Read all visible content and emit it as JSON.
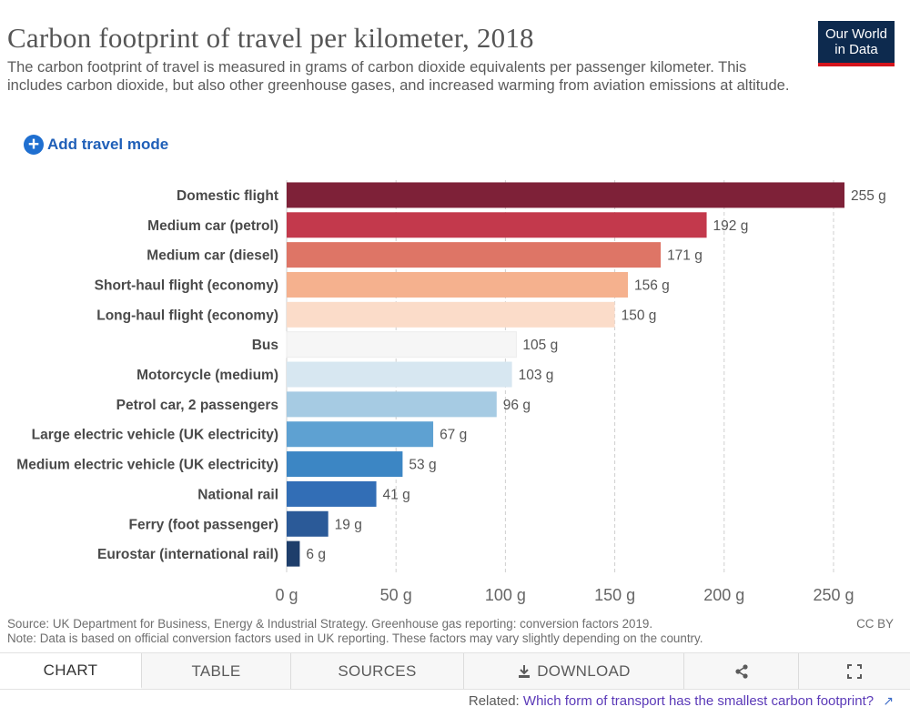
{
  "header": {
    "title": "Carbon footprint of travel per kilometer, 2018",
    "subtitle": "The carbon footprint of travel is measured in grams of carbon dioxide equivalents per passenger kilometer. This includes carbon dioxide, but also other greenhouse gases, and increased warming from aviation emissions at altitude.",
    "logo_line1": "Our World",
    "logo_line2": "in Data",
    "add_mode_label": "Add travel mode"
  },
  "chart_data": {
    "type": "bar",
    "orientation": "horizontal",
    "unit": "g",
    "categories": [
      "Domestic flight",
      "Medium car (petrol)",
      "Medium car (diesel)",
      "Short-haul flight (economy)",
      "Long-haul flight (economy)",
      "Bus",
      "Motorcycle (medium)",
      "Petrol car, 2 passengers",
      "Large electric vehicle (UK electricity)",
      "Medium electric vehicle (UK electricity)",
      "National rail",
      "Ferry (foot passenger)",
      "Eurostar (international rail)"
    ],
    "values": [
      255,
      192,
      171,
      156,
      150,
      105,
      103,
      96,
      67,
      53,
      41,
      19,
      6
    ],
    "value_labels": [
      "255 g",
      "192 g",
      "171 g",
      "156 g",
      "150 g",
      "105 g",
      "103 g",
      "96 g",
      "67 g",
      "53 g",
      "41 g",
      "19 g",
      "6 g"
    ],
    "colors": [
      "#7e2138",
      "#c3394c",
      "#de7566",
      "#f5b18e",
      "#fbdcc9",
      "#f6f6f6",
      "#d7e7f1",
      "#a6cbe3",
      "#5ea1d2",
      "#3c86c4",
      "#326eb6",
      "#2b5a98",
      "#1e3e6b"
    ],
    "xlim": [
      0,
      255
    ],
    "x_ticks": [
      0,
      50,
      100,
      150,
      200,
      250
    ],
    "x_tick_labels": [
      "0 g",
      "50 g",
      "100 g",
      "150 g",
      "200 g",
      "250 g"
    ],
    "grid": true
  },
  "footer": {
    "source": "Source: UK Department for Business, Energy & Industrial Strategy. Greenhouse gas reporting: conversion factors 2019.",
    "note": "Note: Data is based on official conversion factors used in UK reporting. These factors may vary slightly depending on the country.",
    "license": "CC BY"
  },
  "tabs": {
    "chart": "CHART",
    "table": "TABLE",
    "sources": "SOURCES",
    "download": "DOWNLOAD",
    "share_icon": "share-icon",
    "fullscreen_icon": "fullscreen-icon"
  },
  "related": {
    "prefix": "Related:",
    "link": "Which form of transport has the smallest carbon footprint?"
  }
}
